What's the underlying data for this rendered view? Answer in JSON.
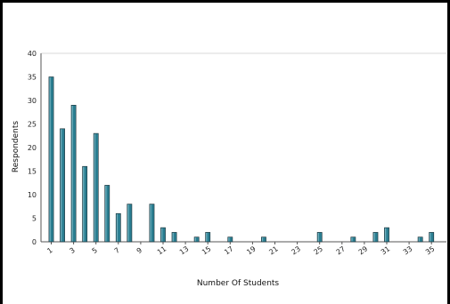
{
  "chart_data": {
    "type": "bar",
    "title": "",
    "xlabel": "Number Of Students",
    "ylabel": "Respondents",
    "ylim": [
      0,
      40
    ],
    "yticks": [
      "0",
      "5",
      "10",
      "15",
      "20",
      "25",
      "30",
      "35",
      "40"
    ],
    "xticks": [
      "1",
      "3",
      "5",
      "7",
      "9",
      "11",
      "13",
      "15",
      "17",
      "19",
      "21",
      "23",
      "25",
      "27",
      "29",
      "31",
      "33",
      "35"
    ],
    "categories": [
      "1",
      "2",
      "3",
      "4",
      "5",
      "6",
      "7",
      "8",
      "9",
      "10",
      "11",
      "12",
      "13",
      "14",
      "15",
      "16",
      "17",
      "18",
      "19",
      "20",
      "21",
      "22",
      "23",
      "24",
      "25",
      "26",
      "27",
      "28",
      "29",
      "30",
      "31",
      "32",
      "33",
      "34",
      "35"
    ],
    "values": [
      35,
      24,
      29,
      16,
      23,
      12,
      6,
      8,
      0,
      8,
      3,
      2,
      0,
      1,
      2,
      0,
      1,
      0,
      0,
      1,
      0,
      0,
      0,
      0,
      2,
      0,
      0,
      1,
      0,
      2,
      3,
      0,
      0,
      1,
      2
    ],
    "bar_color": "#2a7e91",
    "grid": false,
    "legend": "none"
  }
}
